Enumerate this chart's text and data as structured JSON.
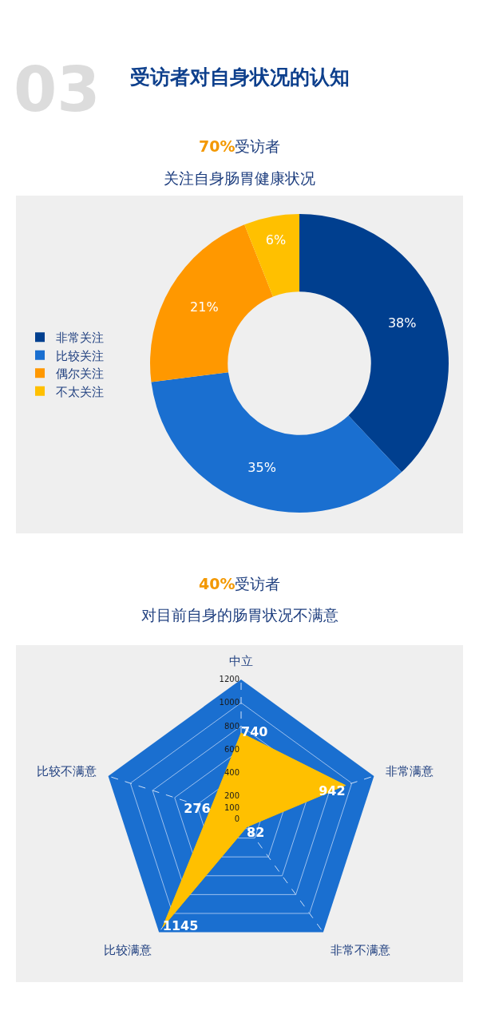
{
  "chart_data": [
    {
      "type": "donut",
      "title": "70%受访者",
      "subtitle": "关注自身肠胃健康状况",
      "annotations": [
        "03",
        "受访者对自身状况的认知"
      ],
      "categories": [
        "非常关注",
        "比较关注",
        "偶尔关注",
        "不太关注"
      ],
      "values": [
        38,
        35,
        21,
        6
      ],
      "value_labels": [
        "38%",
        "35%",
        "21%",
        "6%"
      ],
      "colors": [
        "#003f8f",
        "#1a6fd0",
        "#ff9800",
        "#ffc000"
      ],
      "legend": "left"
    },
    {
      "type": "radar",
      "title": "40%受访者",
      "subtitle": "对目前自身的肠胃状况不满意",
      "categories": [
        "中立",
        "非常满意",
        "非常不满意",
        "比较满意",
        "比较不满意"
      ],
      "series": [
        {
          "color": "#ffc000",
          "values": [
            740,
            942,
            82,
            1145,
            276
          ]
        }
      ],
      "data_labels": true,
      "ylim": [
        0,
        1200
      ],
      "yticks": [
        0,
        100,
        200,
        400,
        600,
        800,
        1000,
        1200
      ],
      "grid": true,
      "marker": "none"
    }
  ]
}
